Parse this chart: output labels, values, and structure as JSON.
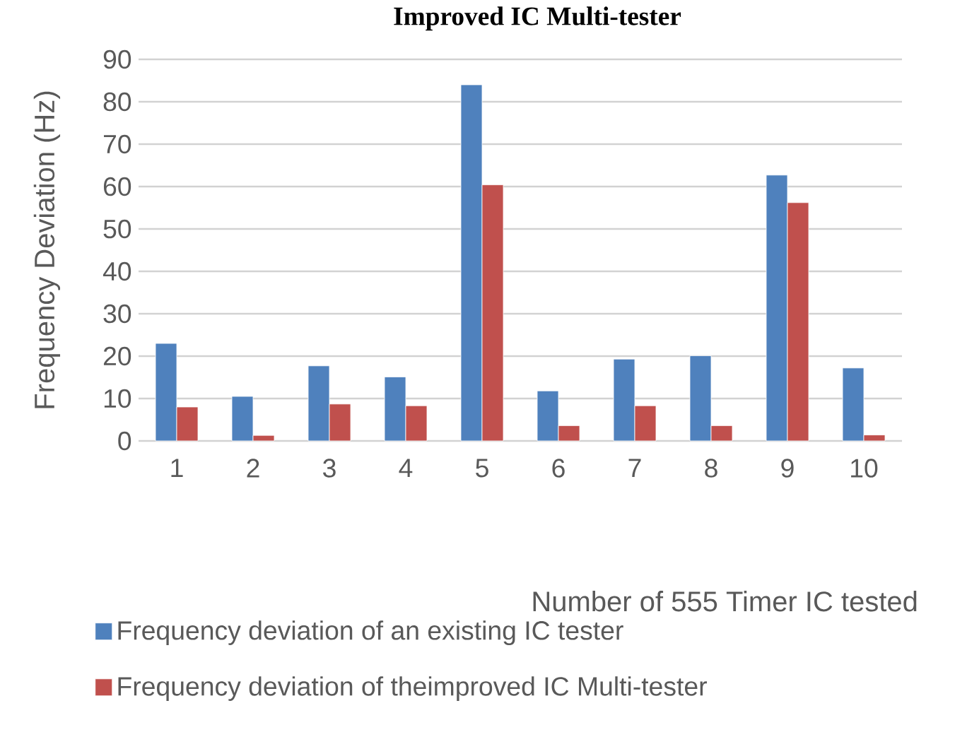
{
  "chart_data": {
    "type": "bar",
    "title": "Improved IC Multi-tester",
    "xlabel": "Number of 555 Timer IC tested",
    "ylabel": "Frequency Deviation (Hz)",
    "categories": [
      "1",
      "2",
      "3",
      "4",
      "5",
      "6",
      "7",
      "8",
      "9",
      "10"
    ],
    "series": [
      {
        "name": "Frequency deviation of an existing IC tester",
        "color": "#4f81bd",
        "values": [
          23.0,
          10.5,
          17.7,
          15.1,
          84.0,
          11.8,
          19.3,
          20.1,
          62.7,
          17.2
        ]
      },
      {
        "name": "Frequency deviation of theimproved IC Multi-tester",
        "color": "#c0504d",
        "values": [
          8.0,
          1.3,
          8.7,
          8.3,
          60.4,
          3.6,
          8.3,
          3.6,
          56.2,
          1.4
        ]
      }
    ],
    "ylim": [
      0,
      90
    ],
    "yticks": [
      0,
      10,
      20,
      30,
      40,
      50,
      60,
      70,
      80,
      90
    ],
    "grid": "y",
    "legend": "bottom left"
  }
}
